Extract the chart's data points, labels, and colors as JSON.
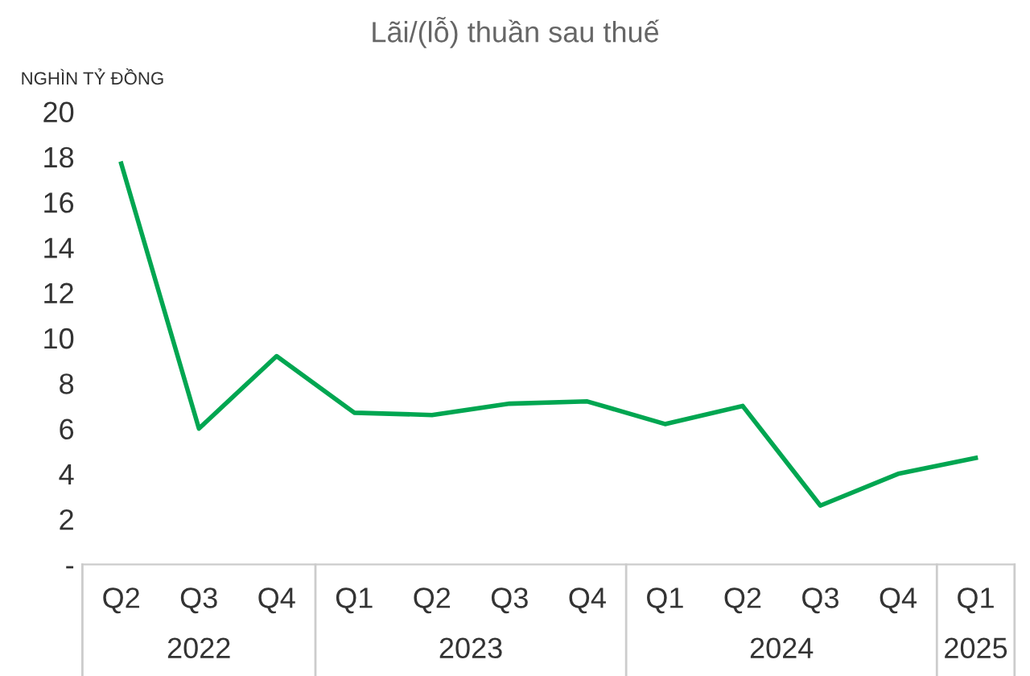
{
  "chart_data": {
    "type": "line",
    "title": "Lãi/(lỗ) thuần sau thuế",
    "ylabel": "NGHÌN TỶ ĐỒNG",
    "categories": [
      "Q2",
      "Q3",
      "Q4",
      "Q1",
      "Q2",
      "Q3",
      "Q4",
      "Q1",
      "Q2",
      "Q3",
      "Q4",
      "Q1"
    ],
    "series": [
      {
        "color": "#00a651",
        "values": [
          17.7,
          6.0,
          9.2,
          6.7,
          6.6,
          7.1,
          7.2,
          6.2,
          7.0,
          2.6,
          4.0,
          4.7
        ]
      }
    ],
    "annotations": [
      "2022",
      "2023",
      "2024",
      "2025"
    ],
    "ylim": [
      0,
      20
    ],
    "yticks": [
      {
        "value": 0,
        "label": "-"
      },
      2,
      4,
      6,
      8,
      10,
      12,
      14,
      16,
      18,
      20
    ],
    "grid": false,
    "legend": false,
    "marker": "none",
    "line_style": "solid"
  }
}
